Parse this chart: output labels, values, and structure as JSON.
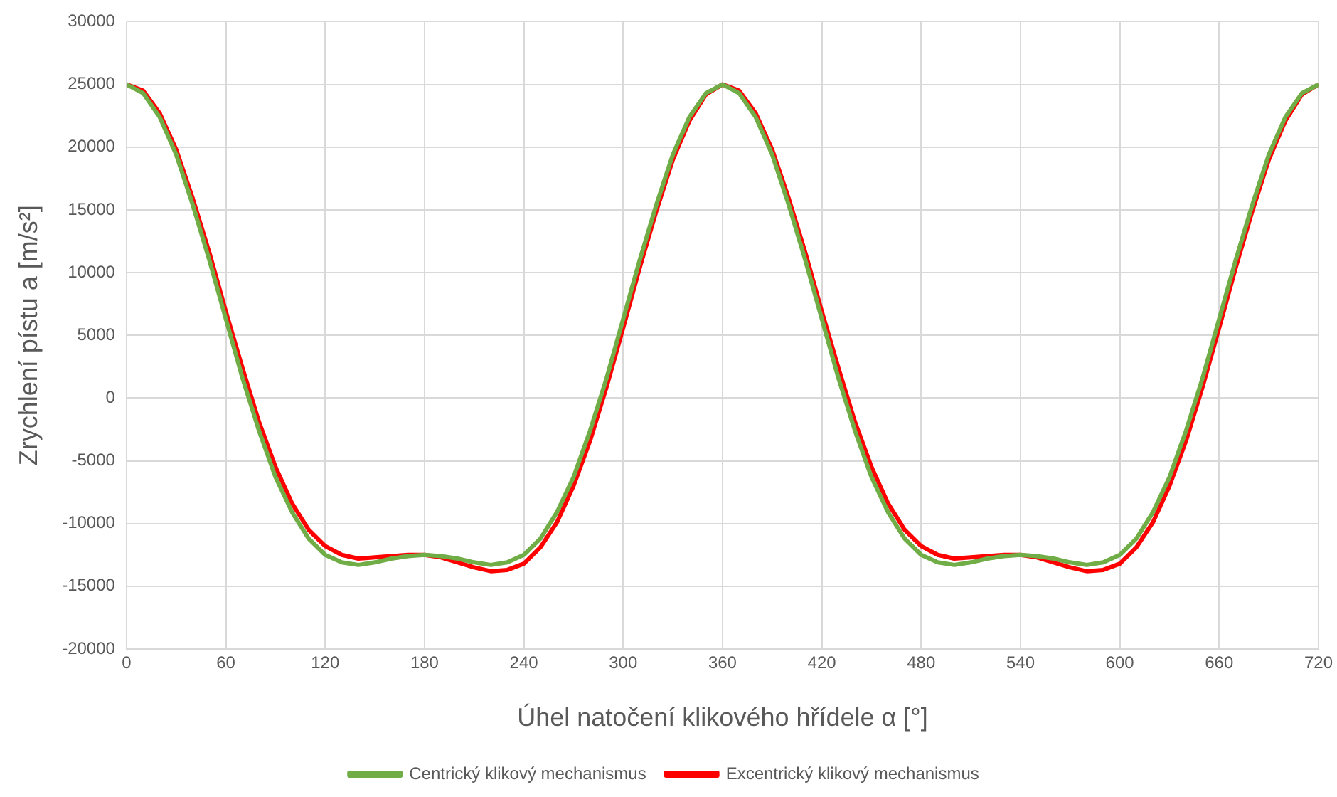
{
  "chart_data": {
    "type": "line",
    "xlabel": "Úhel natočení klikového hřídele α [°]",
    "ylabel": "Zrychlení pístu a [m/s²]",
    "x": [
      0,
      10,
      20,
      30,
      40,
      50,
      60,
      70,
      80,
      90,
      100,
      110,
      120,
      130,
      140,
      150,
      160,
      170,
      180,
      190,
      200,
      210,
      220,
      230,
      240,
      250,
      260,
      270,
      280,
      290,
      300,
      310,
      320,
      330,
      340,
      350,
      360,
      370,
      380,
      390,
      400,
      410,
      420,
      430,
      440,
      450,
      460,
      470,
      480,
      490,
      500,
      510,
      520,
      530,
      540,
      550,
      560,
      570,
      580,
      590,
      600,
      610,
      620,
      630,
      640,
      650,
      660,
      670,
      680,
      690,
      700,
      710,
      720
    ],
    "series": [
      {
        "name": "Centrický klikový mechanismus",
        "color": "#70ad47",
        "values": [
          25000,
          24300,
          22400,
          19400,
          15400,
          11000,
          6300,
          1600,
          -2600,
          -6300,
          -9100,
          -11200,
          -12500,
          -13100,
          -13300,
          -13100,
          -12800,
          -12600,
          -12500,
          -12600,
          -12800,
          -13100,
          -13300,
          -13100,
          -12500,
          -11200,
          -9100,
          -6300,
          -2600,
          1600,
          6300,
          11000,
          15400,
          19400,
          22400,
          24300,
          25000,
          24300,
          22400,
          19400,
          15400,
          11000,
          6300,
          1600,
          -2600,
          -6300,
          -9100,
          -11200,
          -12500,
          -13100,
          -13300,
          -13100,
          -12800,
          -12600,
          -12500,
          -12600,
          -12800,
          -13100,
          -13300,
          -13100,
          -12500,
          -11200,
          -9100,
          -6300,
          -2600,
          1600,
          6300,
          11000,
          15400,
          19400,
          22400,
          24300,
          25000
        ]
      },
      {
        "name": "Excentrický klikový mechanismus",
        "color": "#ff0000",
        "values": [
          25000,
          24500,
          22700,
          19800,
          15900,
          11600,
          6900,
          2400,
          -1900,
          -5500,
          -8400,
          -10500,
          -11800,
          -12500,
          -12800,
          -12700,
          -12600,
          -12500,
          -12500,
          -12700,
          -13100,
          -13500,
          -13800,
          -13700,
          -13200,
          -11900,
          -9900,
          -7000,
          -3400,
          900,
          5600,
          10400,
          14900,
          19000,
          22100,
          24200,
          25000,
          24500,
          22700,
          19800,
          15900,
          11600,
          6900,
          2400,
          -1900,
          -5500,
          -8400,
          -10500,
          -11800,
          -12500,
          -12800,
          -12700,
          -12600,
          -12500,
          -12500,
          -12700,
          -13100,
          -13500,
          -13800,
          -13700,
          -13200,
          -11900,
          -9900,
          -7000,
          -3400,
          900,
          5600,
          10400,
          14900,
          19000,
          22100,
          24200,
          25000
        ]
      }
    ],
    "xlim": [
      0,
      720
    ],
    "xticks": [
      0,
      60,
      120,
      180,
      240,
      300,
      360,
      420,
      480,
      540,
      600,
      660,
      720
    ],
    "ylim": [
      -20000,
      30000
    ],
    "yticks": [
      -20000,
      -15000,
      -10000,
      -5000,
      0,
      5000,
      10000,
      15000,
      20000,
      25000,
      30000
    ],
    "grid": true,
    "legend": "bottom",
    "marker": "none",
    "line_style": "solid"
  }
}
